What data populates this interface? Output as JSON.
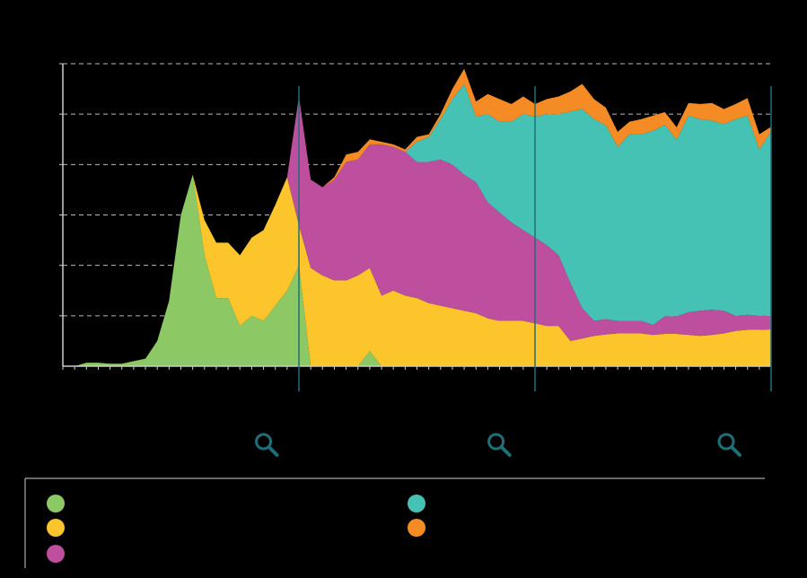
{
  "colors": {
    "background": "#000000",
    "grid": "#bbbbbb",
    "axis": "#cccccc",
    "divider": "#1f6f78",
    "zoom_icon": "#1f6f78",
    "legend_border": "#cccccc"
  },
  "icons": {
    "zoom": "magnifier-icon"
  },
  "chart_data": {
    "type": "area",
    "stacked": true,
    "grid": true,
    "grid_style": "dashed",
    "legend_position": "bottom",
    "title": "",
    "xlabel": "",
    "ylabel": "",
    "ylim": [
      0,
      6
    ],
    "xlim": [
      0,
      60
    ],
    "y_gridlines": [
      1,
      2,
      3,
      4,
      5,
      6
    ],
    "dividers_x": [
      20,
      40,
      60
    ],
    "zoom_icons_x": [
      17.0,
      36.7,
      56.2
    ],
    "x": [
      0,
      1,
      2,
      3,
      4,
      5,
      6,
      7,
      8,
      9,
      10,
      11,
      12,
      13,
      14,
      15,
      16,
      17,
      18,
      19,
      20,
      21,
      22,
      23,
      24,
      25,
      26,
      27,
      28,
      29,
      30,
      31,
      32,
      33,
      34,
      35,
      36,
      37,
      38,
      39,
      40,
      41,
      42,
      43,
      44,
      45,
      46,
      47,
      48,
      49,
      50,
      51,
      52,
      53,
      54,
      55,
      56,
      57,
      58,
      59,
      60
    ],
    "series": [
      {
        "color": "#8cc864",
        "values": [
          0,
          0,
          0.07,
          0.07,
          0.05,
          0.05,
          0.1,
          0.15,
          0.5,
          1.3,
          3.0,
          3.8,
          2.2,
          1.35,
          1.35,
          0.8,
          1.0,
          0.9,
          1.2,
          1.5,
          2.0,
          0,
          0,
          0,
          0,
          0,
          0.3,
          0,
          0,
          0,
          0,
          0,
          0,
          0,
          0,
          0,
          0,
          0,
          0,
          0,
          0,
          0,
          0,
          0,
          0,
          0,
          0,
          0,
          0,
          0,
          0,
          0,
          0,
          0,
          0,
          0,
          0,
          0,
          0,
          0,
          0
        ]
      },
      {
        "color": "#fcc52b",
        "values": [
          0,
          0,
          0,
          0,
          0,
          0,
          0,
          0,
          0,
          0,
          0,
          0,
          0.7,
          1.1,
          1.1,
          1.4,
          1.55,
          1.8,
          2.0,
          2.25,
          0.8,
          1.95,
          1.8,
          1.7,
          1.7,
          1.8,
          1.65,
          1.4,
          1.5,
          1.4,
          1.35,
          1.25,
          1.2,
          1.15,
          1.1,
          1.05,
          0.95,
          0.9,
          0.9,
          0.9,
          0.85,
          0.8,
          0.8,
          0.5,
          0.55,
          0.6,
          0.63,
          0.65,
          0.65,
          0.65,
          0.62,
          0.64,
          0.64,
          0.62,
          0.6,
          0.62,
          0.65,
          0.7,
          0.72,
          0.72,
          0.73
        ]
      },
      {
        "color": "#bd4f9e",
        "values": [
          0,
          0,
          0,
          0,
          0,
          0,
          0,
          0,
          0,
          0,
          0,
          0,
          0,
          0,
          0,
          0,
          0,
          0,
          0,
          0,
          2.55,
          1.75,
          1.75,
          2.0,
          2.35,
          2.3,
          2.45,
          3.0,
          2.85,
          2.85,
          2.7,
          2.8,
          2.9,
          2.85,
          2.7,
          2.6,
          2.3,
          2.15,
          1.95,
          1.8,
          1.7,
          1.6,
          1.4,
          1.15,
          0.6,
          0.3,
          0.3,
          0.25,
          0.25,
          0.25,
          0.2,
          0.35,
          0.35,
          0.45,
          0.5,
          0.5,
          0.45,
          0.3,
          0.3,
          0.28,
          0.27
        ]
      },
      {
        "color": "#45c2b4",
        "values": [
          0,
          0,
          0,
          0,
          0,
          0,
          0,
          0,
          0,
          0,
          0,
          0,
          0,
          0,
          0,
          0,
          0,
          0,
          0,
          0,
          0,
          0,
          0,
          0,
          0,
          0,
          0,
          0,
          0,
          0,
          0.4,
          0.5,
          0.8,
          1.3,
          1.8,
          1.3,
          1.75,
          1.8,
          2.0,
          2.3,
          2.4,
          2.6,
          2.8,
          3.4,
          3.95,
          4.0,
          3.85,
          3.45,
          3.7,
          3.7,
          3.85,
          3.8,
          3.5,
          3.9,
          3.8,
          3.75,
          3.7,
          3.9,
          3.95,
          3.3,
          3.65
        ]
      },
      {
        "color": "#f58b24",
        "values": [
          0,
          0,
          0,
          0,
          0,
          0,
          0,
          0,
          0,
          0,
          0,
          0,
          0,
          0,
          0,
          0,
          0,
          0,
          0,
          0,
          0,
          0,
          0,
          0,
          0,
          0,
          0,
          0,
          0,
          0,
          0,
          0,
          0,
          0,
          0,
          0,
          0,
          0,
          0,
          0,
          0,
          0,
          0,
          0,
          0,
          0,
          0,
          0,
          0,
          0,
          0,
          0,
          0,
          0,
          0,
          0,
          0,
          0,
          0,
          0,
          0
        ]
      }
    ],
    "extra_top_band": [
      0,
      0,
      0,
      0,
      0,
      0,
      0,
      0,
      0,
      0,
      0,
      0,
      0,
      0,
      0,
      0,
      0,
      0,
      0,
      0,
      0,
      0,
      0,
      0.05,
      0.15,
      0.15,
      0.1,
      0.05,
      0.05,
      0.05,
      0.1,
      0.05,
      0.1,
      0.2,
      0.3,
      0.3,
      0.4,
      0.45,
      0.35,
      0.35,
      0.25,
      0.3,
      0.35,
      0.4,
      0.5,
      0.4,
      0.35,
      0.3,
      0.25,
      0.3,
      0.3,
      0.25,
      0.25,
      0.25,
      0.3,
      0.35,
      0.3,
      0.3,
      0.35,
      0.3,
      0.1
    ]
  },
  "legend": {
    "entries": [
      {
        "color": "#8cc864",
        "label": ""
      },
      {
        "color": "#fcc52b",
        "label": ""
      },
      {
        "color": "#bd4f9e",
        "label": ""
      },
      {
        "color": "#45c2b4",
        "label": ""
      },
      {
        "color": "#f58b24",
        "label": ""
      }
    ]
  }
}
